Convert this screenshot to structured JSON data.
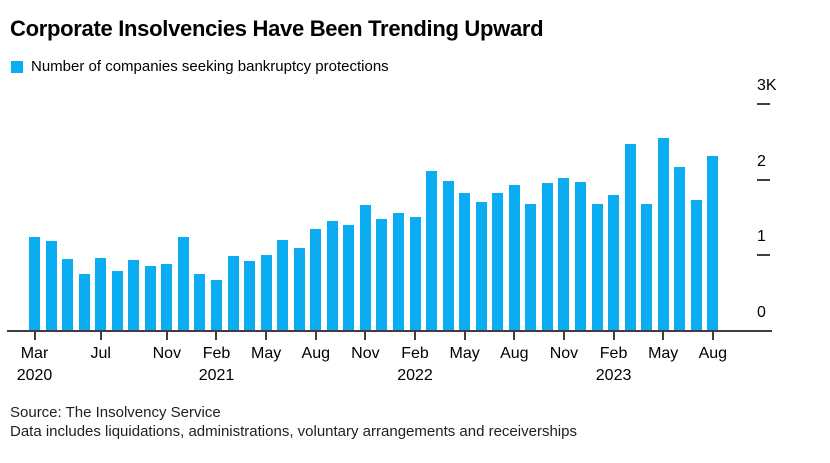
{
  "title": "Corporate Insolvencies Have Been Trending Upward",
  "legend": {
    "label": "Number of companies seeking bankruptcy protections"
  },
  "colors": {
    "bar": "#0cacf2",
    "axis": "#3f3f3f",
    "text": "#000000"
  },
  "footer": {
    "source": "Source: The Insolvency Service",
    "note": "Data includes liquidations, administrations, voluntary arrangements and receiverships"
  },
  "chart_data": {
    "type": "bar",
    "title": "Corporate Insolvencies Have Been Trending Upward",
    "series_name": "Number of companies seeking bankruptcy protections",
    "grid": false,
    "legend_position": "top-left",
    "y_axis_side": "right",
    "ylim": [
      0,
      3000
    ],
    "yticks": [
      {
        "value": 0,
        "label": "0"
      },
      {
        "value": 1000,
        "label": "1"
      },
      {
        "value": 2000,
        "label": "2"
      },
      {
        "value": 3000,
        "label": "3K"
      }
    ],
    "x": [
      "Mar 2020",
      "Apr 2020",
      "May 2020",
      "Jun 2020",
      "Jul 2020",
      "Aug 2020",
      "Sep 2020",
      "Oct 2020",
      "Nov 2020",
      "Dec 2020",
      "Jan 2021",
      "Feb 2021",
      "Mar 2021",
      "Apr 2021",
      "May 2021",
      "Jun 2021",
      "Jul 2021",
      "Aug 2021",
      "Sep 2021",
      "Oct 2021",
      "Nov 2021",
      "Dec 2021",
      "Jan 2022",
      "Feb 2022",
      "Mar 2022",
      "Apr 2022",
      "May 2022",
      "Jun 2022",
      "Jul 2022",
      "Aug 2022",
      "Sep 2022",
      "Oct 2022",
      "Nov 2022",
      "Dec 2022",
      "Jan 2023",
      "Feb 2023",
      "Mar 2023",
      "Apr 2023",
      "May 2023",
      "Jun 2023",
      "Jul 2023",
      "Aug 2023"
    ],
    "values": [
      1240,
      1190,
      950,
      750,
      970,
      790,
      935,
      865,
      890,
      1240,
      755,
      680,
      990,
      920,
      1005,
      1200,
      1095,
      1345,
      1450,
      1400,
      1665,
      1480,
      1565,
      1510,
      2120,
      1990,
      1825,
      1700,
      1830,
      1935,
      1685,
      1960,
      2020,
      1965,
      1685,
      1800,
      2470,
      1685,
      2550,
      2165,
      1730,
      2310
    ],
    "xticks": [
      {
        "index": 0,
        "label": "Mar",
        "year": "2020"
      },
      {
        "index": 4,
        "label": "Jul"
      },
      {
        "index": 8,
        "label": "Nov"
      },
      {
        "index": 11,
        "label": "Feb",
        "year": "2021"
      },
      {
        "index": 14,
        "label": "May"
      },
      {
        "index": 17,
        "label": "Aug"
      },
      {
        "index": 20,
        "label": "Nov"
      },
      {
        "index": 23,
        "label": "Feb",
        "year": "2022"
      },
      {
        "index": 26,
        "label": "May"
      },
      {
        "index": 29,
        "label": "Aug"
      },
      {
        "index": 32,
        "label": "Nov"
      },
      {
        "index": 35,
        "label": "Feb",
        "year": "2023"
      },
      {
        "index": 38,
        "label": "May"
      },
      {
        "index": 41,
        "label": "Aug"
      }
    ]
  }
}
